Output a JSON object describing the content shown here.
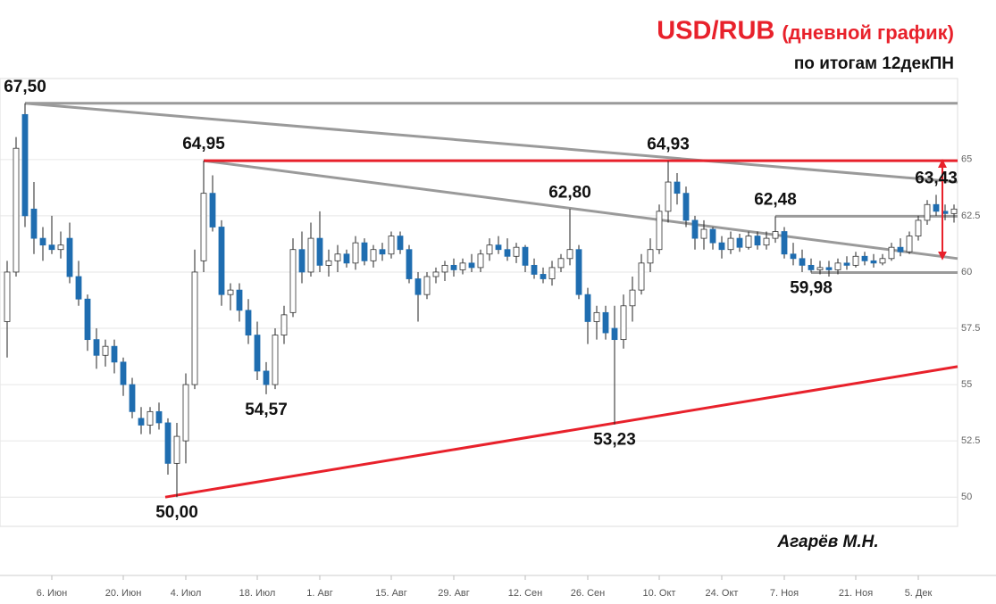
{
  "chart_data": {
    "type": "candlestick",
    "title": "USD/RUB",
    "title_note": "(дневной график)",
    "subtitle": "по итогам 12декПН",
    "author": "Агарёв М.Н.",
    "title_color": "#e8212b",
    "up_color": "#ffffff",
    "down_color": "#1f6db0",
    "wick_color": "#222222",
    "ylim": [
      48.7,
      68.6
    ],
    "yticks": [
      50,
      52.5,
      55,
      57.5,
      60,
      62.5,
      65
    ],
    "grid": true,
    "categories": [
      null,
      null,
      null,
      null,
      null,
      "6. Июн",
      null,
      null,
      null,
      null,
      null,
      null,
      null,
      "20. Июн",
      null,
      null,
      null,
      null,
      null,
      null,
      "4. Июл",
      null,
      null,
      null,
      null,
      null,
      null,
      null,
      "18. Июл",
      null,
      null,
      null,
      null,
      null,
      null,
      "1. Авг",
      null,
      null,
      null,
      null,
      null,
      null,
      null,
      "15. Авг",
      null,
      null,
      null,
      null,
      null,
      null,
      "29. Авг",
      null,
      null,
      null,
      null,
      null,
      null,
      null,
      "12. Сен",
      null,
      null,
      null,
      null,
      null,
      null,
      "26. Сен",
      null,
      null,
      null,
      null,
      null,
      null,
      null,
      "10. Окт",
      null,
      null,
      null,
      null,
      null,
      null,
      "24. Окт",
      null,
      null,
      null,
      null,
      null,
      null,
      "7. Ноя",
      null,
      null,
      null,
      null,
      null,
      null,
      null,
      "21. Ноя",
      null,
      null,
      null,
      null,
      null,
      null,
      "5. Дек",
      null,
      null,
      null,
      null
    ],
    "open": [
      57.8,
      60,
      67,
      62.8,
      61.5,
      61.2,
      61,
      61.5,
      59.8,
      58.8,
      57,
      56.3,
      56.7,
      56,
      55,
      53.5,
      53.2,
      53.8,
      53.3,
      51.5,
      52.5,
      55,
      60.5,
      63.5,
      62,
      59,
      59.2,
      58.3,
      57.2,
      55.6,
      55,
      57.2,
      58.2,
      61,
      60,
      61.5,
      60.3,
      60.5,
      60.8,
      60.4,
      61.3,
      60.5,
      61,
      60.8,
      61.6,
      61,
      59.7,
      59,
      59.8,
      60,
      60.3,
      60.1,
      60.4,
      60.2,
      60.8,
      61.2,
      61,
      60.7,
      61.1,
      60.3,
      59.9,
      59.7,
      60.2,
      60.6,
      61,
      59,
      57.8,
      58.2,
      57.5,
      57,
      58.5,
      59.2,
      60.4,
      61,
      62.7,
      64,
      63.5,
      62.3,
      61.5,
      61.9,
      61.3,
      61,
      61.5,
      61.1,
      61.6,
      61.2,
      61.5,
      61.8,
      60.8,
      60.6,
      60.3,
      60.1,
      60.2,
      60.1,
      60.4,
      60.3,
      60.7,
      60.5,
      60.4,
      60.6,
      61.1,
      60.9,
      61.6,
      62.3,
      63,
      62.7,
      62.6
    ],
    "high": [
      60.5,
      66,
      67.5,
      64,
      62,
      62.5,
      61.8,
      62.2,
      60.5,
      59,
      57.5,
      57,
      57,
      56.2,
      55.3,
      54,
      54,
      54.2,
      53.5,
      53.3,
      55.5,
      61,
      64.95,
      64.3,
      62.3,
      59.5,
      59.5,
      58.8,
      57.8,
      56,
      57.5,
      58.5,
      61.5,
      61.8,
      62.2,
      62.7,
      61,
      61.2,
      61,
      61.6,
      61.5,
      61.2,
      61.3,
      61.8,
      61.8,
      61.2,
      60,
      60,
      60.2,
      60.5,
      60.6,
      60.6,
      60.8,
      61,
      61.5,
      61.6,
      61.5,
      61.3,
      61.2,
      60.6,
      60.2,
      60.5,
      60.8,
      62.8,
      61.2,
      59.3,
      58.5,
      58.5,
      58.5,
      59,
      59.8,
      60.8,
      61.5,
      63,
      64.93,
      64.4,
      63.8,
      62.5,
      62.3,
      62,
      61.6,
      61.8,
      61.7,
      61.8,
      61.8,
      61.8,
      62.48,
      62,
      61.3,
      61,
      60.6,
      60.5,
      60.5,
      60.6,
      60.7,
      60.9,
      60.9,
      60.8,
      60.8,
      61.3,
      61.5,
      61.8,
      62.5,
      63.2,
      63.43,
      63,
      63
    ],
    "low": [
      56.2,
      59.8,
      62,
      60.8,
      60.5,
      60.8,
      60.6,
      59.5,
      58.5,
      56.5,
      55.7,
      55.8,
      55.5,
      54.5,
      53.5,
      52.8,
      52.8,
      53,
      51,
      50,
      51.5,
      54.8,
      60,
      61.8,
      58.5,
      58.3,
      57.8,
      56.8,
      55.2,
      54.57,
      54.8,
      56.8,
      58,
      59.5,
      59.8,
      60,
      59.8,
      60,
      60.2,
      60.1,
      60.3,
      60.2,
      60.5,
      60.6,
      60.8,
      59.5,
      57.8,
      58.8,
      59.5,
      59.6,
      59.8,
      59.9,
      60,
      60,
      60.5,
      60.8,
      60.5,
      60.4,
      60,
      59.7,
      59.5,
      59.4,
      60,
      60.3,
      58.8,
      56.8,
      57,
      57,
      53.23,
      56.6,
      57.8,
      59,
      60,
      60.8,
      62.2,
      63,
      62,
      61,
      61,
      61,
      60.6,
      60.8,
      60.9,
      61,
      61,
      61,
      61.3,
      60.6,
      60.3,
      60,
      59.98,
      59.9,
      59.8,
      59.9,
      60.1,
      60.2,
      60.3,
      60.2,
      60.3,
      60.5,
      60.7,
      60.8,
      61.4,
      62.1,
      62.5,
      62.3,
      62.2
    ],
    "close": [
      60,
      65.5,
      62.5,
      61.5,
      61.2,
      61,
      61.2,
      59.8,
      58.8,
      57,
      56.3,
      56.7,
      56,
      55,
      53.8,
      53.2,
      53.8,
      53.3,
      51.5,
      52.7,
      55,
      60,
      63.5,
      62,
      59,
      59.2,
      58.3,
      57.2,
      55.6,
      55,
      57.2,
      58.1,
      61,
      60,
      61.5,
      60.3,
      60.5,
      60.8,
      60.4,
      61.3,
      60.5,
      61,
      60.8,
      61.6,
      61,
      59.7,
      59,
      59.8,
      60,
      60.3,
      60.1,
      60.4,
      60.2,
      60.8,
      61.2,
      61,
      60.7,
      61.1,
      60.3,
      59.9,
      59.7,
      60.2,
      60.6,
      61,
      59,
      57.8,
      58.2,
      57.3,
      57,
      58.5,
      59.2,
      60.4,
      61,
      62.7,
      64,
      63.5,
      62.3,
      61.5,
      61.9,
      61.3,
      61,
      61.5,
      61.1,
      61.6,
      61.2,
      61.5,
      61.8,
      60.8,
      60.6,
      60.3,
      60.1,
      60.2,
      60.1,
      60.4,
      60.3,
      60.7,
      60.5,
      60.4,
      60.6,
      61.1,
      60.9,
      61.6,
      62.3,
      63,
      62.7,
      62.6,
      62.8
    ],
    "annotations": [
      {
        "label": "67,50",
        "value": 67.5,
        "position": "above"
      },
      {
        "label": "64,95",
        "value": 64.95,
        "position": "above"
      },
      {
        "label": "62,80",
        "value": 62.8,
        "position": "above"
      },
      {
        "label": "64,93",
        "value": 64.93,
        "position": "above"
      },
      {
        "label": "62,48",
        "value": 62.48,
        "position": "above"
      },
      {
        "label": "63,43",
        "value": 63.43,
        "position": "above"
      },
      {
        "label": "54,57",
        "value": 54.57,
        "position": "below"
      },
      {
        "label": "50,00",
        "value": 50,
        "position": "below"
      },
      {
        "label": "53,23",
        "value": 53.23,
        "position": "below"
      },
      {
        "label": "59,98",
        "value": 59.98,
        "position": "below"
      }
    ],
    "trendlines": [
      {
        "color": "#9a9a9a",
        "points": [
          [
            2,
            67.5
          ],
          [
            106.4,
            67.5
          ]
        ]
      },
      {
        "color": "#9a9a9a",
        "points": [
          [
            2,
            67.5
          ],
          [
            106.4,
            64.0
          ]
        ]
      },
      {
        "color": "#9a9a9a",
        "points": [
          [
            22,
            64.95
          ],
          [
            106.4,
            60.6
          ]
        ]
      },
      {
        "color": "#e8212b",
        "points": [
          [
            22,
            64.95
          ],
          [
            106.4,
            64.95
          ]
        ]
      },
      {
        "color": "#e8212b",
        "points": [
          [
            17.7,
            50
          ],
          [
            106.4,
            55.8
          ]
        ]
      },
      {
        "color": "#9a9a9a",
        "points": [
          [
            86,
            62.48
          ],
          [
            106.4,
            62.48
          ]
        ]
      },
      {
        "color": "#9a9a9a",
        "points": [
          [
            90,
            59.98
          ],
          [
            106.4,
            59.98
          ]
        ]
      }
    ],
    "arrows": [
      {
        "color": "#e8212b",
        "points": [
          [
            104.7,
            64.95
          ],
          [
            104.7,
            60.6
          ]
        ]
      }
    ]
  }
}
